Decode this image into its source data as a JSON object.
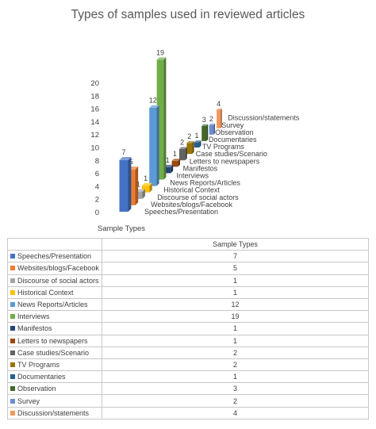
{
  "chart_data": {
    "type": "bar",
    "title": "Types of samples used in reviewed articles",
    "xlabel": "Sample Types",
    "ylabel": "",
    "ylim": [
      0,
      20
    ],
    "yticks": [
      "0",
      "2",
      "4",
      "6",
      "8",
      "10",
      "12",
      "14",
      "16",
      "18",
      "20"
    ],
    "grid": false,
    "legend": "table-below",
    "series_name": "Sample Types",
    "categories": [
      "Speeches/Presentation",
      "Websites/blogs/Facebook",
      "Discourse of social actors",
      "Historical Context",
      "News Reports/Articles",
      "Interviews",
      "Manifestos",
      "Letters to newspapers",
      "Case studies/Scenario",
      "TV Programs",
      "Documentaries",
      "Observation",
      "Survey",
      "Discussion/statements"
    ],
    "values": [
      7,
      5,
      1,
      1,
      12,
      19,
      1,
      1,
      2,
      2,
      1,
      3,
      2,
      4
    ],
    "colors": [
      "#4472c4",
      "#ed7d31",
      "#a5a5a5",
      "#ffc000",
      "#5b9bd5",
      "#70ad47",
      "#264478",
      "#9e480e",
      "#636363",
      "#997300",
      "#255e91",
      "#43682b",
      "#698ed0",
      "#f1975a"
    ]
  }
}
